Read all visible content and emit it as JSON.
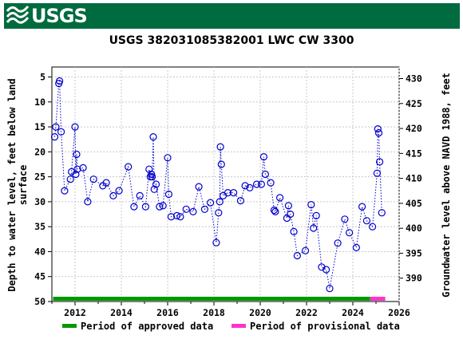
{
  "header": {
    "logo_text": "USGS",
    "logo_icon": "usgs-wave-icon",
    "brand_color": "#006b3f"
  },
  "chart_data": {
    "type": "scatter",
    "title": "USGS 382031085382001 LWC CW 3300",
    "ylabel_left_lines": [
      "Depth to water level, feet below land",
      "surface"
    ],
    "ylabel_right": "Groundwater level above NAVD 1988, feet",
    "xlim": [
      2011.0,
      2026.0
    ],
    "ylim_left": [
      50,
      3
    ],
    "ylim_right": [
      385.32,
      432.32
    ],
    "x_ticks": [
      2012,
      2014,
      2016,
      2018,
      2020,
      2022,
      2024,
      2026
    ],
    "y_ticks_left": [
      5,
      10,
      15,
      20,
      25,
      30,
      35,
      40,
      45,
      50
    ],
    "y_ticks_right": [
      390,
      395,
      400,
      405,
      410,
      415,
      420,
      425,
      430
    ],
    "grid": true,
    "series_color": "#0000cc",
    "series": [
      {
        "x": [
          2011.12,
          2011.17,
          2011.3,
          2011.33,
          2011.4,
          2011.55,
          2011.8,
          2011.85,
          2012.0,
          2012.03,
          2012.07,
          2012.1,
          2012.35,
          2012.55,
          2012.8,
          2013.2,
          2013.35,
          2013.65,
          2013.9,
          2014.3,
          2014.55,
          2014.8,
          2015.05,
          2015.2,
          2015.25,
          2015.3,
          2015.33,
          2015.38,
          2015.42,
          2015.5,
          2015.65,
          2015.8,
          2016.0,
          2016.05,
          2016.15,
          2016.4,
          2016.55,
          2016.8,
          2017.1,
          2017.35,
          2017.6,
          2017.85,
          2018.1,
          2018.2,
          2018.25,
          2018.28,
          2018.32,
          2018.4,
          2018.6,
          2018.85,
          2019.15,
          2019.35,
          2019.55,
          2019.85,
          2020.05,
          2020.15,
          2020.22,
          2020.45,
          2020.6,
          2020.65,
          2020.85,
          2021.15,
          2021.22,
          2021.3,
          2021.45,
          2021.6,
          2021.95,
          2022.2,
          2022.3,
          2022.42,
          2022.65,
          2022.85,
          2023.0,
          2023.35,
          2023.65,
          2023.85,
          2024.15,
          2024.4,
          2024.6,
          2024.85,
          2025.05,
          2025.08,
          2025.12,
          2025.16,
          2025.25
        ],
        "y": [
          17.0,
          15.0,
          6.3,
          5.8,
          16.0,
          27.8,
          25.5,
          24.0,
          15.0,
          24.5,
          20.5,
          23.5,
          23.2,
          30.0,
          25.5,
          26.8,
          26.2,
          28.8,
          27.8,
          23.0,
          31.0,
          28.8,
          31.0,
          23.5,
          25.0,
          24.5,
          25.0,
          17.0,
          27.5,
          26.5,
          31.0,
          30.8,
          21.2,
          28.5,
          33.0,
          32.8,
          33.0,
          31.5,
          32.0,
          27.0,
          31.5,
          30.2,
          38.2,
          32.2,
          30.0,
          19.0,
          22.5,
          28.8,
          28.2,
          28.2,
          29.8,
          26.8,
          27.2,
          26.5,
          26.5,
          21.0,
          24.5,
          26.2,
          31.7,
          32.0,
          29.2,
          33.3,
          30.8,
          32.5,
          36.0,
          40.8,
          39.8,
          30.6,
          35.3,
          32.8,
          43.1,
          43.6,
          47.4,
          38.3,
          33.5,
          36.2,
          39.2,
          31.0,
          33.8,
          35.0,
          24.3,
          15.4,
          16.2,
          22.0,
          32.2
        ]
      }
    ],
    "periods": [
      {
        "label": "Period of approved data",
        "color": "#009900",
        "x_start": 2011.05,
        "x_end": 2024.75
      },
      {
        "label": "Period of provisional data",
        "color": "#ff33cc",
        "x_start": 2024.75,
        "x_end": 2025.4
      }
    ]
  }
}
